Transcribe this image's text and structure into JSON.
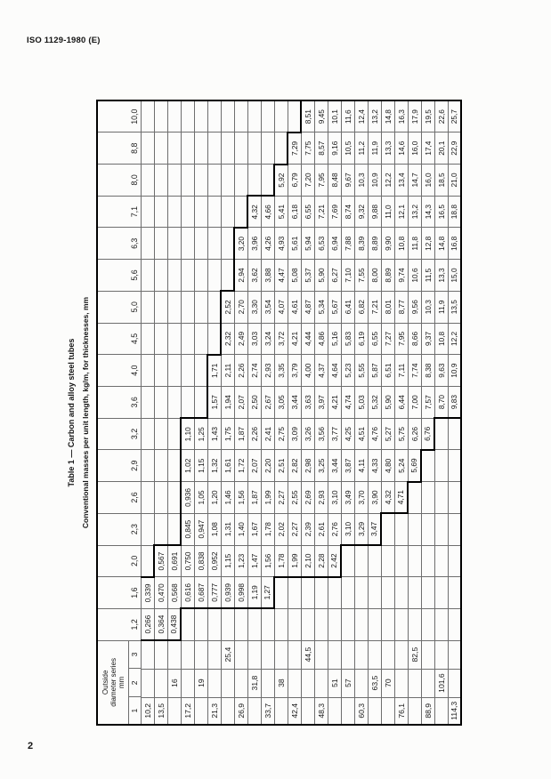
{
  "page": {
    "header": "ISO 1129-1980 (E)",
    "page_number": "2"
  },
  "table": {
    "title": "Table 1 — Carbon and alloy steel tubes",
    "subtitle": "Conventional masses per unit length, kg/m, for thicknesses, mm",
    "corner": {
      "line1": "Outside",
      "line2": "diameter series",
      "line3": "mm"
    },
    "series_labels": [
      "1",
      "2",
      "3"
    ],
    "thickness_headers": [
      "1,2",
      "1,6",
      "2,0",
      "2,3",
      "2,6",
      "2,9",
      "3,2",
      "3,6",
      "4,0",
      "4,5",
      "5,0",
      "5,6",
      "6,3",
      "7,1",
      "8,0",
      "8,8",
      "10,0"
    ],
    "rows": [
      {
        "d": "10,2",
        "series": 1,
        "start": 0,
        "values": [
          "0,266",
          "0,339"
        ]
      },
      {
        "d": "13,5",
        "series": 1,
        "start": 0,
        "values": [
          "0,364",
          "0,470",
          "0,567"
        ]
      },
      {
        "d": "16",
        "series": 2,
        "start": 0,
        "values": [
          "0,438",
          "0,568",
          "0,691"
        ]
      },
      {
        "d": "17,2",
        "series": 1,
        "start": 1,
        "values": [
          "0,616",
          "0,750",
          "0,845",
          "0,936",
          "1,02",
          "1,10"
        ]
      },
      {
        "d": "19",
        "series": 2,
        "start": 1,
        "values": [
          "0,687",
          "0,838",
          "0,947",
          "1,05",
          "1,15",
          "1,25"
        ]
      },
      {
        "d": "21,3",
        "series": 1,
        "start": 1,
        "values": [
          "0,777",
          "0,952",
          "1,08",
          "1,20",
          "1,32",
          "1,43",
          "1,57",
          "1,71"
        ]
      },
      {
        "d": "25,4",
        "series": 3,
        "start": 1,
        "values": [
          "0,939",
          "1,15",
          "1,31",
          "1,46",
          "1,61",
          "1,75",
          "1,94",
          "2,11",
          "2,32",
          "2,52"
        ]
      },
      {
        "d": "26,9",
        "series": 1,
        "start": 1,
        "values": [
          "0,998",
          "1,23",
          "1,40",
          "1,56",
          "1,72",
          "1,87",
          "2,07",
          "2,26",
          "2,49",
          "2,70",
          "2,94",
          "3,20"
        ]
      },
      {
        "d": "31,8",
        "series": 2,
        "start": 1,
        "values": [
          "1,19",
          "1,47",
          "1,67",
          "1,87",
          "2,07",
          "2,26",
          "2,50",
          "2,74",
          "3,03",
          "3,30",
          "3,62",
          "3,96",
          "4,32"
        ]
      },
      {
        "d": "33,7",
        "series": 1,
        "start": 1,
        "values": [
          "1,27",
          "1,56",
          "1,78",
          "1,99",
          "2,20",
          "2,41",
          "2,67",
          "2,93",
          "3,24",
          "3,54",
          "3,88",
          "4,26",
          "4,66"
        ]
      },
      {
        "d": "38",
        "series": 2,
        "start": 2,
        "values": [
          "1,78",
          "2,02",
          "2,27",
          "2,51",
          "2,75",
          "3,05",
          "3,35",
          "3,72",
          "4,07",
          "4,47",
          "4,93",
          "5,41",
          "5,92"
        ]
      },
      {
        "d": "42,4",
        "series": 1,
        "start": 2,
        "values": [
          "1,99",
          "2,27",
          "2,55",
          "2,82",
          "3,09",
          "3,44",
          "3,79",
          "4,21",
          "4,61",
          "5,08",
          "5,61",
          "6,18",
          "6,79",
          "7,29"
        ]
      },
      {
        "d": "44,5",
        "series": 3,
        "start": 2,
        "values": [
          "2,10",
          "2,39",
          "2,69",
          "2,98",
          "3,26",
          "3,63",
          "4,00",
          "4,44",
          "4,87",
          "5,37",
          "5,94",
          "6,55",
          "7,20",
          "7,75",
          "8,51"
        ]
      },
      {
        "d": "48,3",
        "series": 1,
        "start": 2,
        "values": [
          "2,28",
          "2,61",
          "2,93",
          "3,25",
          "3,56",
          "3,97",
          "4,37",
          "4,86",
          "5,34",
          "5,90",
          "6,53",
          "7,21",
          "7,95",
          "8,57",
          "9,45"
        ]
      },
      {
        "d": "51",
        "series": 2,
        "start": 2,
        "values": [
          "2,42",
          "2,76",
          "3,10",
          "3,44",
          "3,77",
          "4,21",
          "4,64",
          "5,16",
          "5,67",
          "6,27",
          "6,94",
          "7,69",
          "8,48",
          "9,16",
          "10,1"
        ]
      },
      {
        "d": "57",
        "series": 2,
        "start": 3,
        "values": [
          "3,10",
          "3,49",
          "3,87",
          "4,25",
          "4,74",
          "5,23",
          "5,83",
          "6,41",
          "7,10",
          "7,88",
          "8,74",
          "9,67",
          "10,5",
          "11,6"
        ]
      },
      {
        "d": "60,3",
        "series": 1,
        "start": 3,
        "values": [
          "3,29",
          "3,70",
          "4,11",
          "4,51",
          "5,03",
          "5,55",
          "6,19",
          "6,82",
          "7,55",
          "8,39",
          "9,32",
          "10,3",
          "11,2",
          "12,4"
        ]
      },
      {
        "d": "63,5",
        "series": 2,
        "start": 3,
        "values": [
          "3,47",
          "3,90",
          "4,33",
          "4,76",
          "5,32",
          "5,87",
          "6,55",
          "7,21",
          "8,00",
          "8,89",
          "9,88",
          "10,9",
          "11,9",
          "13,2"
        ]
      },
      {
        "d": "70",
        "series": 2,
        "start": 4,
        "values": [
          "4,32",
          "4,80",
          "5,27",
          "5,90",
          "6,51",
          "7,27",
          "8,01",
          "8,89",
          "9,90",
          "11,0",
          "12,2",
          "13,3",
          "14,8"
        ]
      },
      {
        "d": "76,1",
        "series": 1,
        "start": 4,
        "values": [
          "4,71",
          "5,24",
          "5,75",
          "6,44",
          "7,11",
          "7,95",
          "8,77",
          "9,74",
          "10,8",
          "12,1",
          "13,4",
          "14,6",
          "16,3"
        ]
      },
      {
        "d": "82,5",
        "series": 3,
        "start": 5,
        "values": [
          "5,69",
          "6,26",
          "7,00",
          "7,74",
          "8,66",
          "9,56",
          "10,6",
          "11,8",
          "13,2",
          "14,7",
          "16,0",
          "17,9"
        ]
      },
      {
        "d": "88,9",
        "series": 1,
        "start": 6,
        "values": [
          "6,76",
          "7,57",
          "8,38",
          "9,37",
          "10,3",
          "11,5",
          "12,8",
          "14,3",
          "16,0",
          "17,4",
          "19,5"
        ]
      },
      {
        "d": "101,6",
        "series": 2,
        "start": 7,
        "values": [
          "8,70",
          "9,63",
          "10,8",
          "11,9",
          "13,3",
          "14,8",
          "16,5",
          "18,5",
          "20,1",
          "22,6"
        ]
      },
      {
        "d": "114,3",
        "series": 1,
        "start": 7,
        "values": [
          "9,83",
          "10,9",
          "12,2",
          "13,5",
          "15,0",
          "16,8",
          "18,8",
          "21,0",
          "22,9",
          "25,7"
        ]
      }
    ]
  }
}
